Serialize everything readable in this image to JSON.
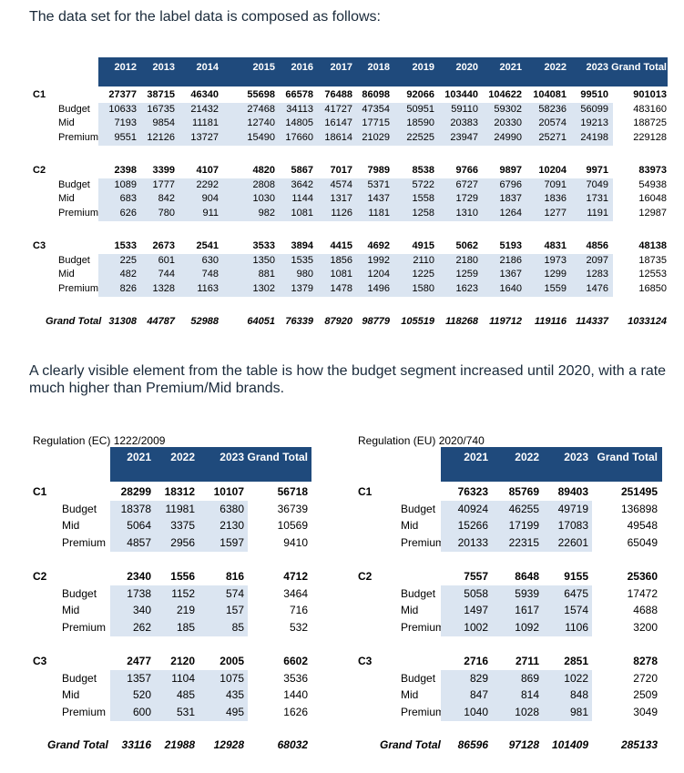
{
  "intro_text": "The data set for the label data is composed as follows:",
  "comment_text": "A clearly visible element from the table is how the budget segment increased until 2020, with a rate much higher than Premium/Mid brands.",
  "colors": {
    "header_bg": "#1f4a7c",
    "row_shade": "#dbe5f1"
  },
  "main_table": {
    "columns": [
      "2012",
      "2013",
      "2014",
      "2015",
      "2016",
      "2017",
      "2018",
      "2019",
      "2020",
      "2021",
      "2022",
      "2023",
      "Grand Total"
    ],
    "groups": [
      {
        "name": "C1",
        "total": [
          "27377",
          "38715",
          "46340",
          "55698",
          "66578",
          "76488",
          "86098",
          "92066",
          "103440",
          "104622",
          "104081",
          "99510",
          "901013"
        ],
        "rows": [
          {
            "label": "Budget",
            "values": [
              "10633",
              "16735",
              "21432",
              "27468",
              "34113",
              "41727",
              "47354",
              "50951",
              "59110",
              "59302",
              "58236",
              "56099",
              "483160"
            ]
          },
          {
            "label": "Mid",
            "values": [
              "7193",
              "9854",
              "11181",
              "12740",
              "14805",
              "16147",
              "17715",
              "18590",
              "20383",
              "20330",
              "20574",
              "19213",
              "188725"
            ]
          },
          {
            "label": "Premium",
            "values": [
              "9551",
              "12126",
              "13727",
              "15490",
              "17660",
              "18614",
              "21029",
              "22525",
              "23947",
              "24990",
              "25271",
              "24198",
              "229128"
            ]
          }
        ]
      },
      {
        "name": "C2",
        "total": [
          "2398",
          "3399",
          "4107",
          "4820",
          "5867",
          "7017",
          "7989",
          "8538",
          "9766",
          "9897",
          "10204",
          "9971",
          "83973"
        ],
        "rows": [
          {
            "label": "Budget",
            "values": [
              "1089",
              "1777",
              "2292",
              "2808",
              "3642",
              "4574",
              "5371",
              "5722",
              "6727",
              "6796",
              "7091",
              "7049",
              "54938"
            ]
          },
          {
            "label": "Mid",
            "values": [
              "683",
              "842",
              "904",
              "1030",
              "1144",
              "1317",
              "1437",
              "1558",
              "1729",
              "1837",
              "1836",
              "1731",
              "16048"
            ]
          },
          {
            "label": "Premium",
            "values": [
              "626",
              "780",
              "911",
              "982",
              "1081",
              "1126",
              "1181",
              "1258",
              "1310",
              "1264",
              "1277",
              "1191",
              "12987"
            ]
          }
        ]
      },
      {
        "name": "C3",
        "total": [
          "1533",
          "2673",
          "2541",
          "3533",
          "3894",
          "4415",
          "4692",
          "4915",
          "5062",
          "5193",
          "4831",
          "4856",
          "48138"
        ],
        "rows": [
          {
            "label": "Budget",
            "values": [
              "225",
              "601",
              "630",
              "1350",
              "1535",
              "1856",
              "1992",
              "2110",
              "2180",
              "2186",
              "1973",
              "2097",
              "18735"
            ]
          },
          {
            "label": "Mid",
            "values": [
              "482",
              "744",
              "748",
              "881",
              "980",
              "1081",
              "1204",
              "1225",
              "1259",
              "1367",
              "1299",
              "1283",
              "12553"
            ]
          },
          {
            "label": "Premium",
            "values": [
              "826",
              "1328",
              "1163",
              "1302",
              "1379",
              "1478",
              "1496",
              "1580",
              "1623",
              "1640",
              "1559",
              "1476",
              "16850"
            ]
          }
        ]
      }
    ],
    "grand_total": {
      "label": "Grand Total",
      "values": [
        "31308",
        "44787",
        "52988",
        "64051",
        "76339",
        "87920",
        "98779",
        "105519",
        "118268",
        "119712",
        "119116",
        "114337",
        "1033124"
      ]
    }
  },
  "ec_table": {
    "caption": "Regulation (EC) 1222/2009",
    "columns": [
      "2021",
      "2022",
      "2023",
      "Grand Total"
    ],
    "groups": [
      {
        "name": "C1",
        "total": [
          "28299",
          "18312",
          "10107",
          "56718"
        ],
        "rows": [
          {
            "label": "Budget",
            "values": [
              "18378",
              "11981",
              "6380",
              "36739"
            ]
          },
          {
            "label": "Mid",
            "values": [
              "5064",
              "3375",
              "2130",
              "10569"
            ]
          },
          {
            "label": "Premium",
            "values": [
              "4857",
              "2956",
              "1597",
              "9410"
            ]
          }
        ]
      },
      {
        "name": "C2",
        "total": [
          "2340",
          "1556",
          "816",
          "4712"
        ],
        "rows": [
          {
            "label": "Budget",
            "values": [
              "1738",
              "1152",
              "574",
              "3464"
            ]
          },
          {
            "label": "Mid",
            "values": [
              "340",
              "219",
              "157",
              "716"
            ]
          },
          {
            "label": "Premium",
            "values": [
              "262",
              "185",
              "85",
              "532"
            ]
          }
        ]
      },
      {
        "name": "C3",
        "total": [
          "2477",
          "2120",
          "2005",
          "6602"
        ],
        "rows": [
          {
            "label": "Budget",
            "values": [
              "1357",
              "1104",
              "1075",
              "3536"
            ]
          },
          {
            "label": "Mid",
            "values": [
              "520",
              "485",
              "435",
              "1440"
            ]
          },
          {
            "label": "Premium",
            "values": [
              "600",
              "531",
              "495",
              "1626"
            ]
          }
        ]
      }
    ],
    "grand_total": {
      "label": "Grand Total",
      "values": [
        "33116",
        "21988",
        "12928",
        "68032"
      ]
    }
  },
  "eu_table": {
    "caption": "Regulation (EU) 2020/740",
    "columns": [
      "2021",
      "2022",
      "2023",
      "Grand Total"
    ],
    "groups": [
      {
        "name": "C1",
        "total": [
          "76323",
          "85769",
          "89403",
          "251495"
        ],
        "rows": [
          {
            "label": "Budget",
            "values": [
              "40924",
              "46255",
              "49719",
              "136898"
            ]
          },
          {
            "label": "Mid",
            "values": [
              "15266",
              "17199",
              "17083",
              "49548"
            ]
          },
          {
            "label": "Premium",
            "values": [
              "20133",
              "22315",
              "22601",
              "65049"
            ]
          }
        ]
      },
      {
        "name": "C2",
        "total": [
          "7557",
          "8648",
          "9155",
          "25360"
        ],
        "rows": [
          {
            "label": "Budget",
            "values": [
              "5058",
              "5939",
              "6475",
              "17472"
            ]
          },
          {
            "label": "Mid",
            "values": [
              "1497",
              "1617",
              "1574",
              "4688"
            ]
          },
          {
            "label": "Premium",
            "values": [
              "1002",
              "1092",
              "1106",
              "3200"
            ]
          }
        ]
      },
      {
        "name": "C3",
        "total": [
          "2716",
          "2711",
          "2851",
          "8278"
        ],
        "rows": [
          {
            "label": "Budget",
            "values": [
              "829",
              "869",
              "1022",
              "2720"
            ]
          },
          {
            "label": "Mid",
            "values": [
              "847",
              "814",
              "848",
              "2509"
            ]
          },
          {
            "label": "Premium",
            "values": [
              "1040",
              "1028",
              "981",
              "3049"
            ]
          }
        ]
      }
    ],
    "grand_total": {
      "label": "Grand Total",
      "values": [
        "86596",
        "97128",
        "101409",
        "285133"
      ]
    }
  }
}
